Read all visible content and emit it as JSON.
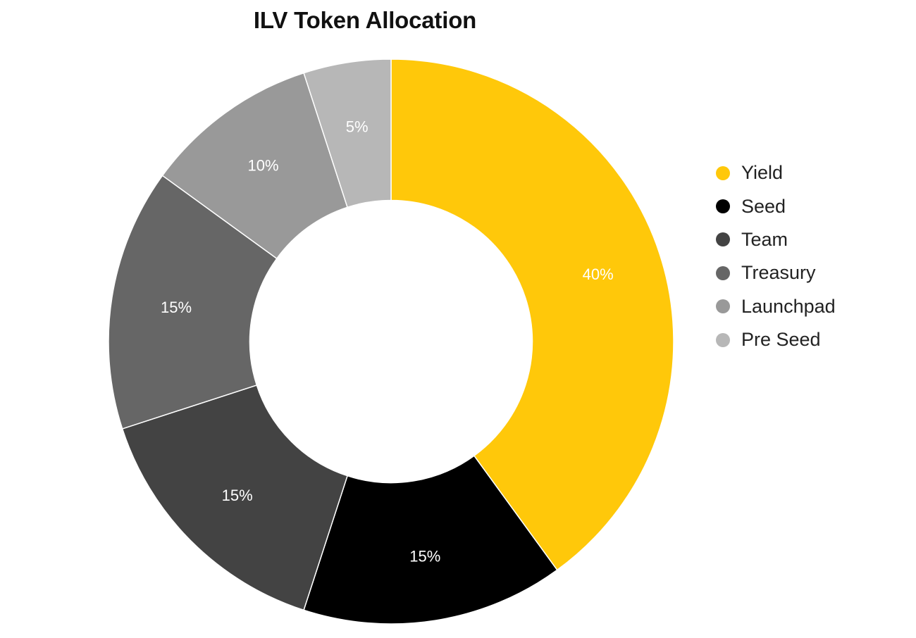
{
  "chart_data": {
    "type": "pie",
    "variant": "donut",
    "title": "ILV Token Allocation",
    "categories": [
      "Yield",
      "Seed",
      "Team",
      "Treasury",
      "Launchpad",
      "Pre Seed"
    ],
    "values": [
      40,
      15,
      15,
      15,
      10,
      5
    ],
    "unit": "%",
    "colors": [
      "#FFC80A",
      "#000000",
      "#434343",
      "#666666",
      "#999999",
      "#B7B7B7"
    ],
    "slice_labels": [
      "40%",
      "15%",
      "15%",
      "15%",
      "10%",
      "5%"
    ],
    "legend_position": "right",
    "start_angle_deg": 0,
    "direction": "clockwise",
    "pie_hole": 0.5
  },
  "legend": {
    "items": [
      {
        "label": "Yield",
        "color": "#FFC80A"
      },
      {
        "label": "Seed",
        "color": "#000000"
      },
      {
        "label": "Team",
        "color": "#434343"
      },
      {
        "label": "Treasury",
        "color": "#666666"
      },
      {
        "label": "Launchpad",
        "color": "#999999"
      },
      {
        "label": "Pre Seed",
        "color": "#B7B7B7"
      }
    ]
  }
}
